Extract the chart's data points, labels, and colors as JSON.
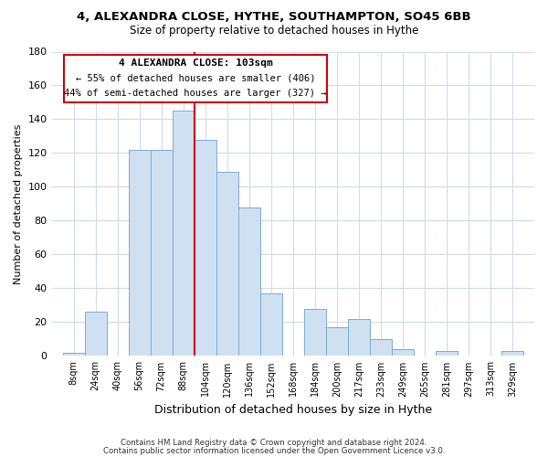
{
  "title": "4, ALEXANDRA CLOSE, HYTHE, SOUTHAMPTON, SO45 6BB",
  "subtitle": "Size of property relative to detached houses in Hythe",
  "xlabel": "Distribution of detached houses by size in Hythe",
  "ylabel": "Number of detached properties",
  "bar_color": "#cfe0f0",
  "bar_edge_color": "#7aabdb",
  "vline_x": 96,
  "vline_color": "#cc0000",
  "categories": [
    "8sqm",
    "24sqm",
    "40sqm",
    "56sqm",
    "72sqm",
    "88sqm",
    "104sqm",
    "120sqm",
    "136sqm",
    "152sqm",
    "168sqm",
    "184sqm",
    "200sqm",
    "217sqm",
    "233sqm",
    "249sqm",
    "265sqm",
    "281sqm",
    "297sqm",
    "313sqm",
    "329sqm"
  ],
  "bin_edges": [
    0,
    16,
    32,
    48,
    64,
    80,
    96,
    112,
    128,
    144,
    160,
    176,
    192,
    208,
    224,
    240,
    256,
    272,
    288,
    304,
    320,
    336
  ],
  "values": [
    2,
    26,
    0,
    122,
    122,
    145,
    128,
    109,
    88,
    37,
    0,
    28,
    17,
    22,
    10,
    4,
    0,
    3,
    0,
    0,
    3
  ],
  "ylim": [
    0,
    180
  ],
  "yticks": [
    0,
    20,
    40,
    60,
    80,
    100,
    120,
    140,
    160,
    180
  ],
  "annotation_title": "4 ALEXANDRA CLOSE: 103sqm",
  "annotation_line1": "← 55% of detached houses are smaller (406)",
  "annotation_line2": "44% of semi-detached houses are larger (327) →",
  "annotation_box_color": "#ffffff",
  "annotation_box_edge": "#cc0000",
  "footer1": "Contains HM Land Registry data © Crown copyright and database right 2024.",
  "footer2": "Contains public sector information licensed under the Open Government Licence v3.0.",
  "bg_color": "#ffffff",
  "plot_bg_color": "#ffffff",
  "grid_color": "#d0dce8"
}
